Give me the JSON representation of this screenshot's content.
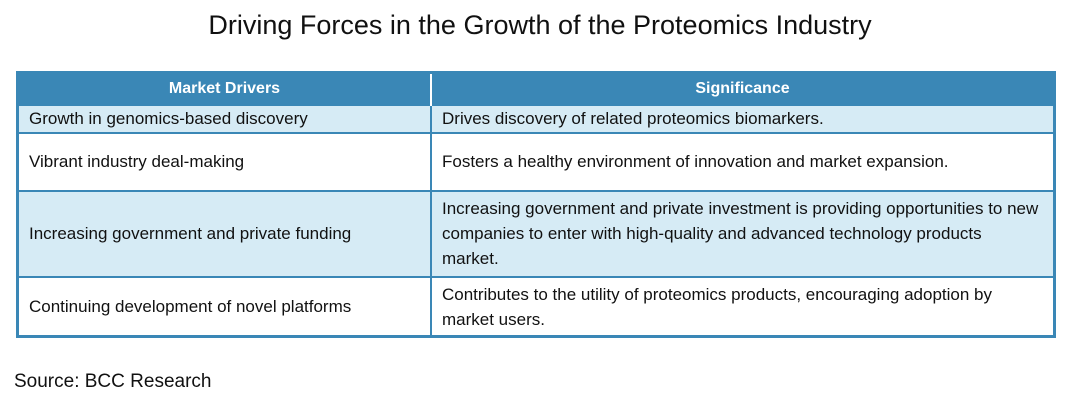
{
  "title": "Driving Forces in the Growth of the Proteomics Industry",
  "table": {
    "headers": [
      "Market Drivers",
      "Significance"
    ],
    "rows": [
      {
        "driver": "Growth in genomics-based discovery",
        "significance": "Drives discovery of related proteomics biomarkers."
      },
      {
        "driver": "Vibrant industry deal-making",
        "significance": "Fosters a healthy environment of innovation and market expansion."
      },
      {
        "driver": "Increasing government and private funding",
        "significance": "Increasing government and private investment is providing opportunities to new companies to enter with high-quality and advanced technology products market."
      },
      {
        "driver": "Continuing development of novel platforms",
        "significance": "Contributes to the utility of proteomics products, encouraging adoption by market users."
      }
    ]
  },
  "source": "Source: BCC Research",
  "colors": {
    "header_background": "#3a87b6",
    "shaded_row": "#d6ebf5",
    "plain_row": "#ffffff"
  }
}
